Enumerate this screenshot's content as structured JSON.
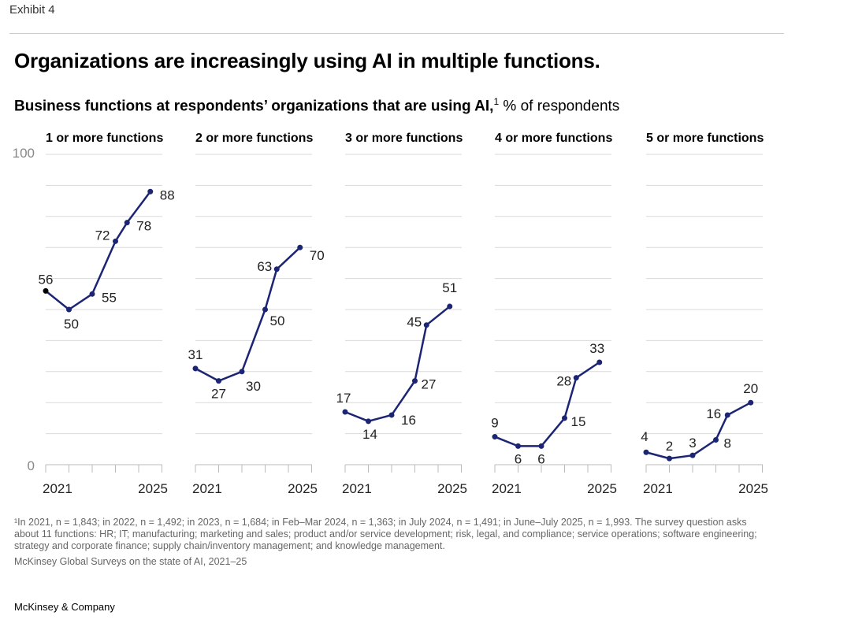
{
  "exhibit": "Exhibit 4",
  "title": "Organizations are increasingly using AI in multiple functions.",
  "subtitle_bold": "Business functions at respondents’ organizations that are using AI,",
  "subtitle_sup": "1",
  "subtitle_unit": " % of respondents",
  "footnote": "¹In 2021, n = 1,843; in 2022, n = 1,492; in 2023, n = 1,684; in Feb–Mar 2024, n = 1,363; in July 2024, n = 1,491; in June–July 2025, n = 1,993. The survey question asks about 11 functions: HR; IT; manufacturing; marketing and sales; product and/or service development; risk, legal, and compliance; service operations; software engineering; strategy and corporate finance; supply chain/inventory management; and knowledge management.",
  "source": "McKinsey Global Surveys on the state of AI, 2021–25",
  "brand": "McKinsey & Company",
  "colors": {
    "line": "#1c2574",
    "first_point_panel1": "#000000",
    "grid": "#d9d9d9"
  },
  "chart_data": {
    "type": "line",
    "ylim": [
      0,
      100
    ],
    "y_tick_labels": [
      "0",
      "100"
    ],
    "x_tick_labels": [
      "2021",
      "2025"
    ],
    "periods": [
      "2021",
      "2022",
      "2023",
      "Feb–Mar 2024",
      "Jul 2024",
      "Jun–Jul 2025"
    ],
    "grid": true,
    "panels": [
      {
        "title": "1 or more functions",
        "values": [
          56,
          50,
          55,
          72,
          78,
          88
        ]
      },
      {
        "title": "2 or more functions",
        "values": [
          31,
          27,
          30,
          50,
          63,
          70
        ]
      },
      {
        "title": "3 or more functions",
        "values": [
          17,
          14,
          16,
          27,
          45,
          51
        ]
      },
      {
        "title": "4 or more functions",
        "values": [
          9,
          6,
          6,
          15,
          28,
          33
        ]
      },
      {
        "title": "5 or more functions",
        "values": [
          4,
          2,
          3,
          8,
          16,
          20
        ]
      }
    ]
  }
}
